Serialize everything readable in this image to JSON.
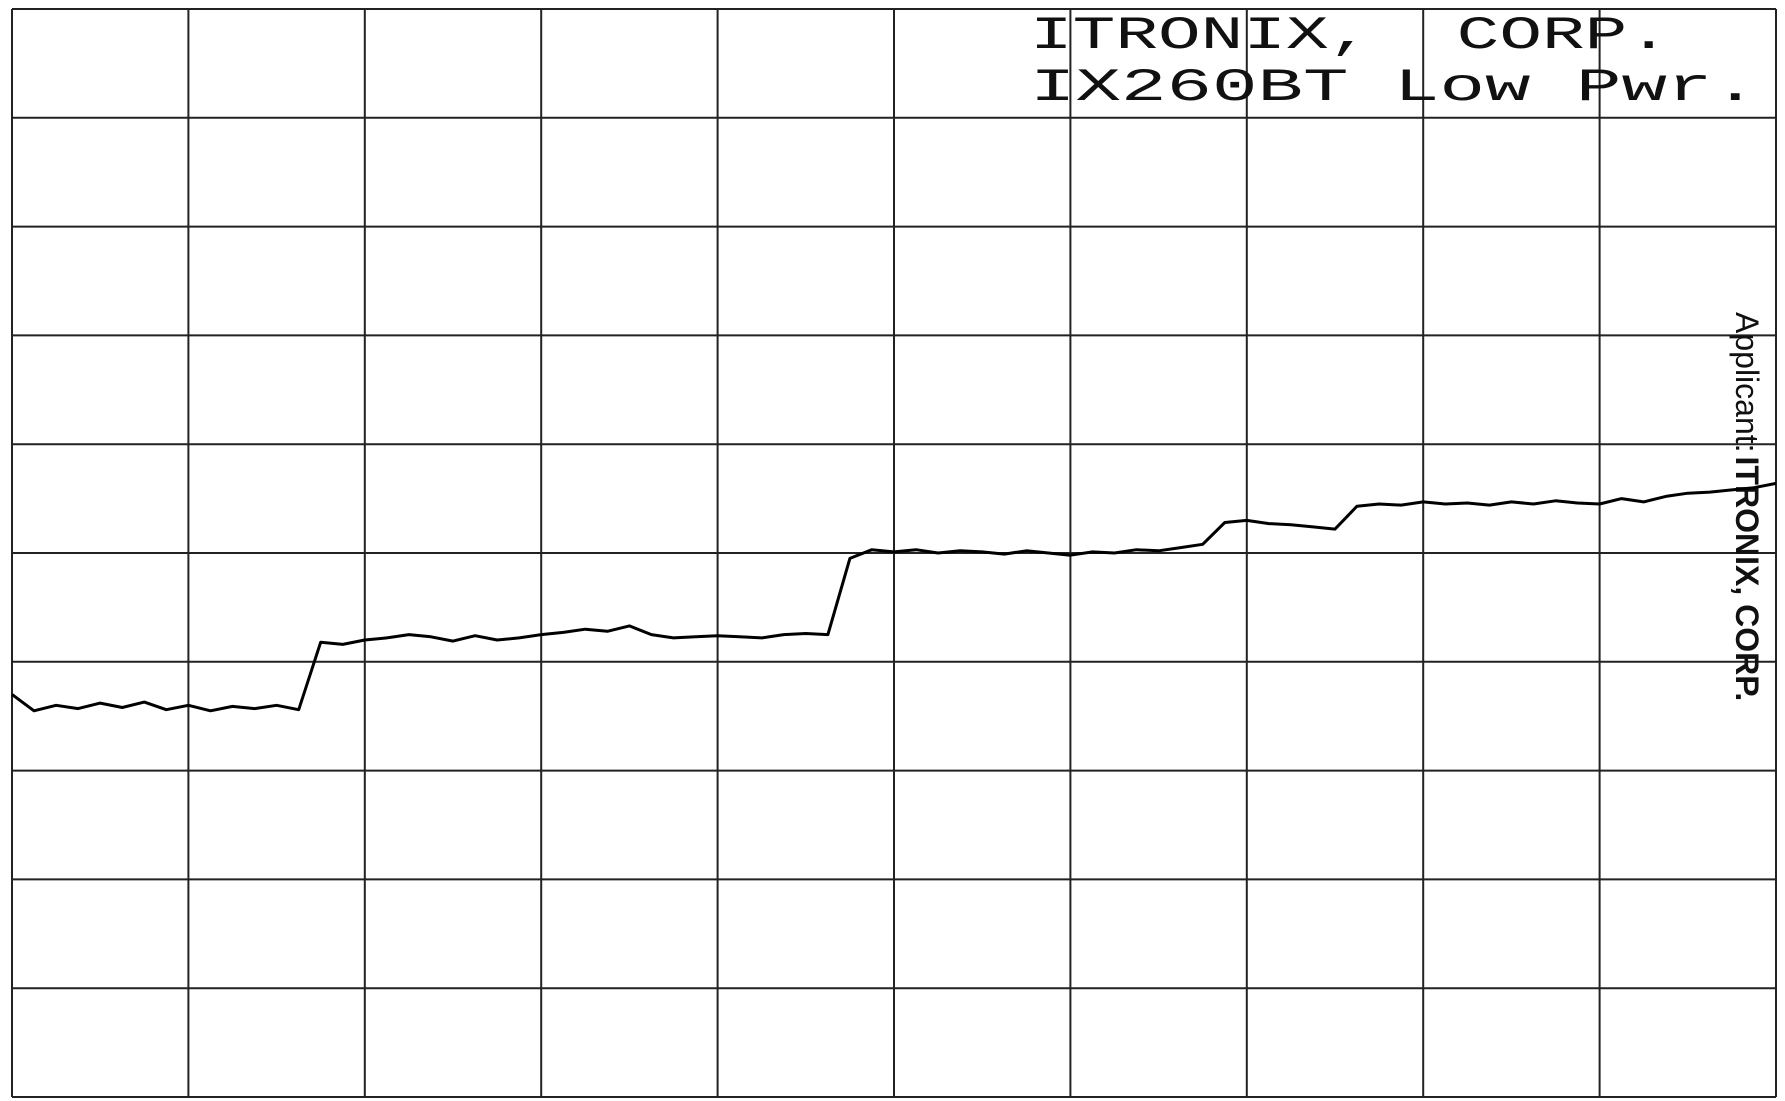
{
  "chart_data": {
    "type": "line",
    "header": [
      "ITRONIX,  CORP.",
      "IX260BT Low Pwr."
    ],
    "side_label": "Applicant:",
    "side_value": "ITRONIX, CORP.",
    "x": [
      0,
      0.125,
      0.25,
      0.375,
      0.5,
      0.625,
      0.75,
      0.875,
      1,
      1.125,
      1.25,
      1.375,
      1.5,
      1.625,
      1.75,
      1.875,
      2,
      2.125,
      2.25,
      2.375,
      2.5,
      2.625,
      2.75,
      2.875,
      3,
      3.125,
      3.25,
      3.375,
      3.5,
      3.625,
      3.75,
      3.875,
      4,
      4.125,
      4.25,
      4.375,
      4.5,
      4.625,
      4.75,
      4.875,
      5,
      5.125,
      5.25,
      5.375,
      5.5,
      5.625,
      5.75,
      5.875,
      6,
      6.125,
      6.25,
      6.375,
      6.5,
      6.625,
      6.75,
      6.875,
      7,
      7.125,
      7.25,
      7.375,
      7.5,
      7.625,
      7.75,
      7.875,
      8,
      8.125,
      8.25,
      8.375,
      8.5,
      8.625,
      8.75,
      8.875,
      9,
      9.125,
      9.25,
      9.375,
      9.5,
      9.625,
      9.75,
      9.875,
      10
    ],
    "values": [
      3.7,
      3.55,
      3.6,
      3.57,
      3.62,
      3.58,
      3.63,
      3.56,
      3.6,
      3.55,
      3.59,
      3.57,
      3.6,
      3.56,
      4.18,
      4.16,
      4.2,
      4.22,
      4.25,
      4.23,
      4.19,
      4.24,
      4.2,
      4.22,
      4.25,
      4.27,
      4.3,
      4.28,
      4.33,
      4.25,
      4.22,
      4.23,
      4.24,
      4.23,
      4.22,
      4.25,
      4.26,
      4.25,
      4.95,
      5.03,
      5.01,
      5.03,
      5.0,
      5.02,
      5.01,
      4.99,
      5.02,
      5.0,
      4.98,
      5.01,
      5.0,
      5.03,
      5.02,
      5.05,
      5.08,
      5.28,
      5.3,
      5.27,
      5.26,
      5.24,
      5.22,
      5.43,
      5.45,
      5.44,
      5.47,
      5.45,
      5.46,
      5.44,
      5.47,
      5.45,
      5.48,
      5.46,
      5.45,
      5.5,
      5.47,
      5.52,
      5.55,
      5.56,
      5.58,
      5.6,
      5.64
    ],
    "color": "#000000",
    "xlim": [
      0,
      10
    ],
    "ylim": [
      0,
      10
    ],
    "xticks": [
      0,
      1,
      2,
      3,
      4,
      5,
      6,
      7,
      8,
      9,
      10
    ],
    "yticks": [
      0,
      1,
      2,
      3,
      4,
      5,
      6,
      7,
      8,
      9,
      10
    ],
    "grid": true
  }
}
